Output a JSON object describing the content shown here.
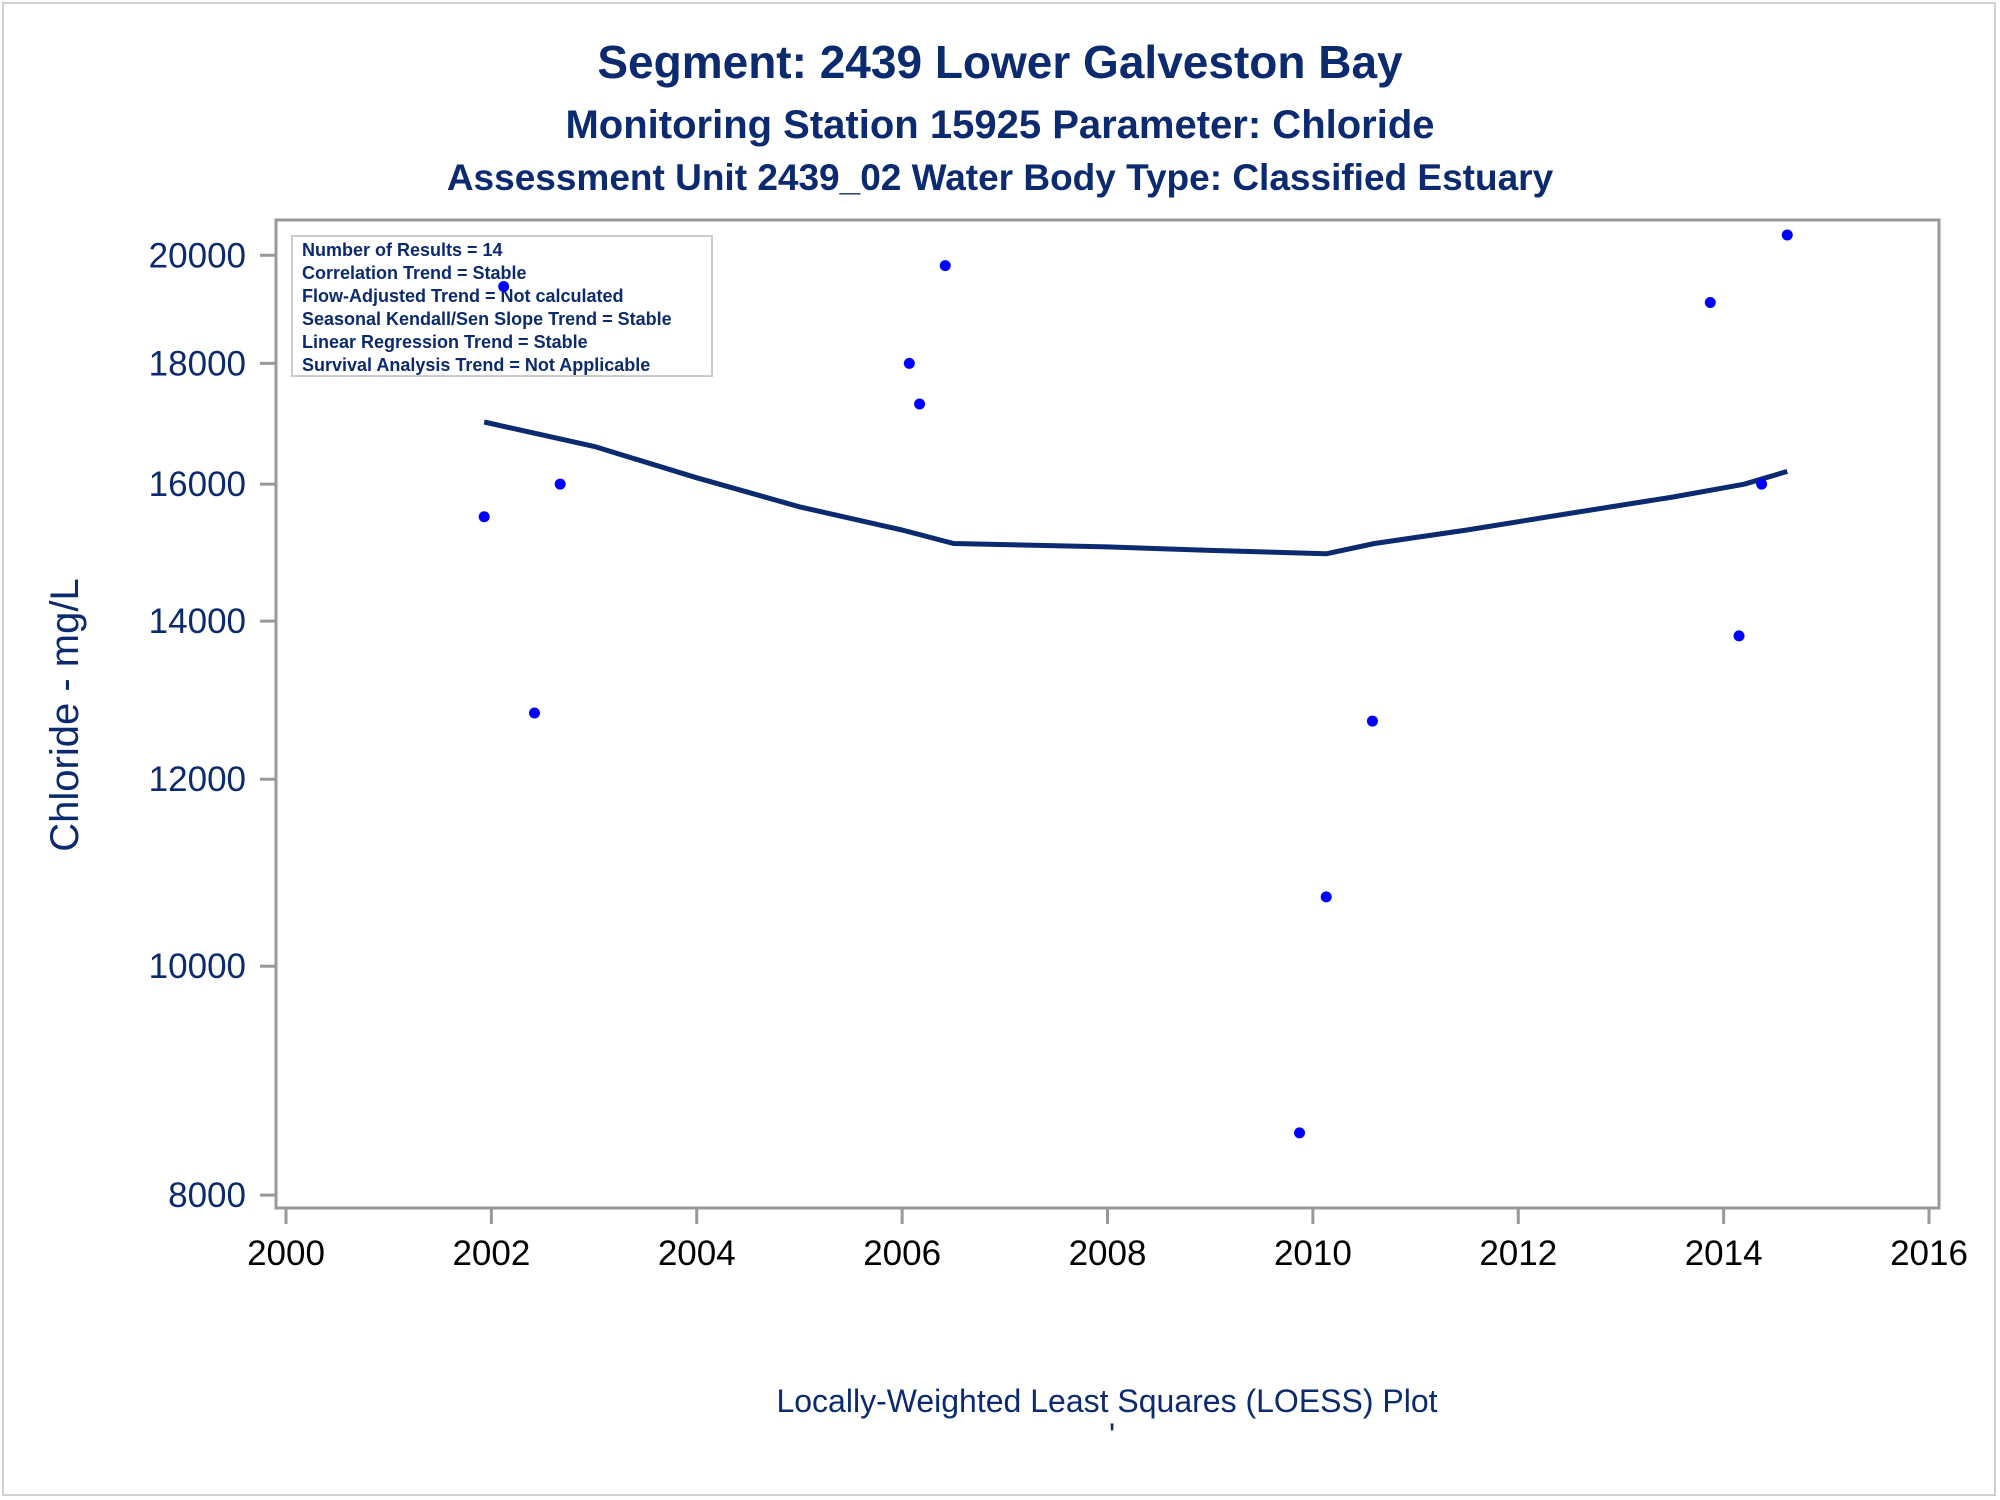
{
  "titles": {
    "line1": "Segment: 2439  Lower Galveston Bay",
    "line2": "Monitoring Station 15925 Parameter: Chloride",
    "line3": "Assessment Unit 2439_02   Water Body Type: Classified Estuary"
  },
  "footnote": "Locally-Weighted Least Squares (LOESS) Plot",
  "footnote_mark": "'",
  "legend": [
    "Number of Results = 14",
    "Correlation Trend = Stable",
    "Flow-Adjusted Trend = Not calculated",
    "Seasonal Kendall/Sen Slope Trend = Stable",
    "Linear Regression Trend = Stable",
    "Survival Analysis Trend = Not Applicable"
  ],
  "colors": {
    "text": "#0b2a6f",
    "points": "#0000ff",
    "loess_line": "#0b2a6f",
    "axis": "#999999"
  },
  "chart_data": {
    "type": "scatter",
    "xlabel": "",
    "ylabel": "Chloride - mg/L",
    "xlim": [
      2000,
      2016
    ],
    "ylim": [
      7900,
      20700
    ],
    "y_scale": "log",
    "x_ticks": [
      2000,
      2002,
      2004,
      2006,
      2008,
      2010,
      2012,
      2014,
      2016
    ],
    "y_ticks": [
      8000,
      10000,
      12000,
      14000,
      16000,
      18000,
      20000
    ],
    "grid": false,
    "legend_position": "top-left",
    "points": [
      {
        "x": 2001.93,
        "y": 15500
      },
      {
        "x": 2002.12,
        "y": 19400
      },
      {
        "x": 2002.42,
        "y": 12800
      },
      {
        "x": 2002.67,
        "y": 16000
      },
      {
        "x": 2006.07,
        "y": 18000
      },
      {
        "x": 2006.17,
        "y": 17300
      },
      {
        "x": 2006.42,
        "y": 19800
      },
      {
        "x": 2009.87,
        "y": 8500
      },
      {
        "x": 2010.13,
        "y": 10700
      },
      {
        "x": 2010.58,
        "y": 12700
      },
      {
        "x": 2013.87,
        "y": 19100
      },
      {
        "x": 2014.15,
        "y": 13800
      },
      {
        "x": 2014.37,
        "y": 16000
      },
      {
        "x": 2014.62,
        "y": 20400
      }
    ],
    "loess": [
      {
        "x": 2001.93,
        "y": 17000
      },
      {
        "x": 2003.0,
        "y": 16600
      },
      {
        "x": 2004.0,
        "y": 16100
      },
      {
        "x": 2005.0,
        "y": 15650
      },
      {
        "x": 2006.0,
        "y": 15300
      },
      {
        "x": 2006.5,
        "y": 15100
      },
      {
        "x": 2008.0,
        "y": 15050
      },
      {
        "x": 2009.0,
        "y": 15000
      },
      {
        "x": 2010.13,
        "y": 14950
      },
      {
        "x": 2010.6,
        "y": 15100
      },
      {
        "x": 2011.5,
        "y": 15300
      },
      {
        "x": 2012.5,
        "y": 15550
      },
      {
        "x": 2013.5,
        "y": 15800
      },
      {
        "x": 2014.2,
        "y": 16000
      },
      {
        "x": 2014.62,
        "y": 16200
      }
    ]
  }
}
